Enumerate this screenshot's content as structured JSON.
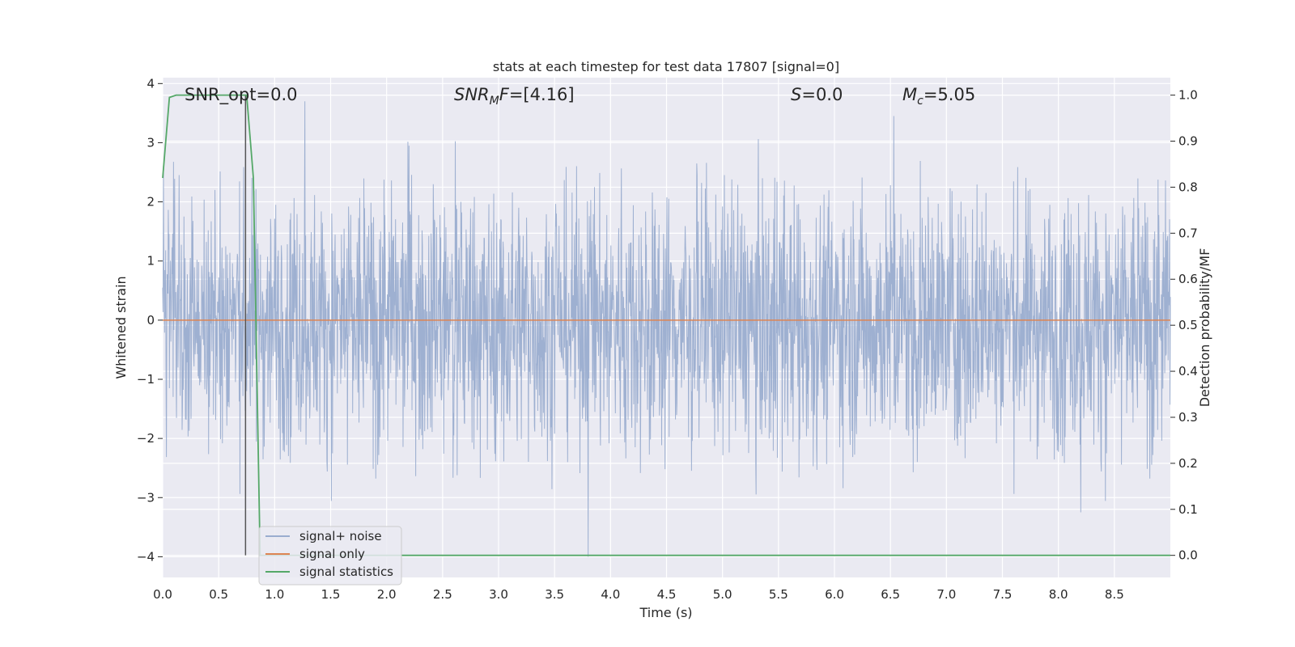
{
  "chart_data": {
    "type": "line",
    "title": "stats at each timestep for test data 17807 [signal=0]",
    "xlabel": "Time (s)",
    "ylabel": "Whitened strain",
    "y2label": "Detection probability/MF",
    "xlim": [
      0.0,
      9.0
    ],
    "ylim": [
      -4.35,
      4.1
    ],
    "y2lim": [
      -0.048,
      1.038
    ],
    "x_ticks": [
      0.0,
      0.5,
      1.0,
      1.5,
      2.0,
      2.5,
      3.0,
      3.5,
      4.0,
      4.5,
      5.0,
      5.5,
      6.0,
      6.5,
      7.0,
      7.5,
      8.0,
      8.5
    ],
    "x_tick_labels": [
      "0.0",
      "0.5",
      "1.0",
      "1.5",
      "2.0",
      "2.5",
      "3.0",
      "3.5",
      "4.0",
      "4.5",
      "5.0",
      "5.5",
      "6.0",
      "6.5",
      "7.0",
      "7.5",
      "8.0",
      "8.5"
    ],
    "y_ticks": [
      4,
      3,
      2,
      1,
      0,
      -1,
      -2,
      -3,
      -4
    ],
    "y_tick_labels": [
      "4",
      "3",
      "2",
      "1",
      "0",
      "−1",
      "−2",
      "−3",
      "−4"
    ],
    "y2_ticks": [
      1.0,
      0.9,
      0.8,
      0.7,
      0.6,
      0.5,
      0.4,
      0.3,
      0.2,
      0.1,
      0.0
    ],
    "y2_tick_labels": [
      "1.0",
      "0.9",
      "0.8",
      "0.7",
      "0.6",
      "0.5",
      "0.4",
      "0.3",
      "0.2",
      "0.1",
      "0.0"
    ],
    "grid": true,
    "legend_position": "lower-left",
    "annotations": [
      "SNR_opt=0.0",
      "SNR_MF=[4.16]",
      "S=0.0",
      "M_c=5.05"
    ],
    "annotation_display": {
      "snr_opt": "SNR_opt=0.0",
      "snr_mf_var": "SNR",
      "snr_mf_sub": "M",
      "snr_mf_var2": "F",
      "snr_mf_val": "=[4.16]",
      "s_var": "S",
      "s_val": "=0.0",
      "mc_var": "M",
      "mc_sub": "c",
      "mc_val": "=5.05"
    },
    "series": [
      {
        "name": "signal+ noise",
        "color": "#9aadcf",
        "axis": "left",
        "description_values": {
          "approx_envelope_low": -2.0,
          "approx_envelope_high": 2.3,
          "peaks": [
            {
              "x": 1.27,
              "y": 3.7
            },
            {
              "x": 6.53,
              "y": 3.45
            },
            {
              "x": 2.2,
              "y": 2.95
            },
            {
              "x": 3.8,
              "y": -4.0
            },
            {
              "x": 8.2,
              "y": -3.25
            }
          ]
        }
      },
      {
        "name": "signal only",
        "color": "#dd8452",
        "axis": "left",
        "x": [
          0.0,
          9.0
        ],
        "y": [
          0.0,
          0.0
        ]
      },
      {
        "name": "signal statistics",
        "color": "#55a868",
        "axis": "right",
        "x": [
          0.0,
          0.06,
          0.12,
          0.25,
          0.5,
          0.69,
          0.75,
          0.81,
          0.87,
          1.0,
          9.0
        ],
        "y": [
          0.82,
          0.995,
          1.0,
          1.0,
          1.0,
          1.0,
          1.0,
          0.82,
          0.0,
          0.0,
          0.0
        ]
      }
    ],
    "vline": {
      "x": 0.74,
      "color": "#555555"
    }
  }
}
